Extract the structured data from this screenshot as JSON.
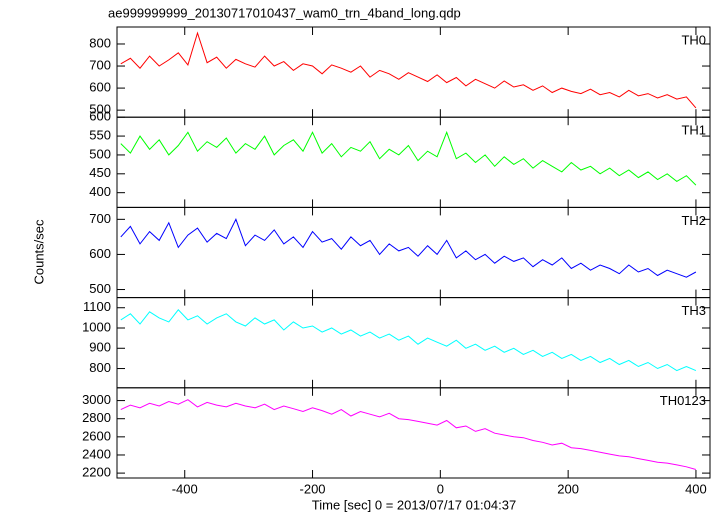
{
  "chart_data": {
    "type": "line",
    "title": "ae999999999_20130717010437_wam0_trn_4band_long.qdp",
    "xlabel": "Time [sec] 0 = 2013/07/17 01:04:37",
    "ylabel": "Counts/sec",
    "xlim": [
      -506,
      422
    ],
    "xticks": [
      -400,
      -200,
      0,
      200,
      400
    ],
    "x": [
      -500,
      -485,
      -470,
      -455,
      -440,
      -425,
      -410,
      -395,
      -380,
      -365,
      -350,
      -335,
      -320,
      -305,
      -290,
      -275,
      -260,
      -245,
      -230,
      -215,
      -200,
      -185,
      -170,
      -155,
      -140,
      -125,
      -110,
      -95,
      -80,
      -65,
      -50,
      -35,
      -20,
      -5,
      10,
      25,
      40,
      55,
      70,
      85,
      100,
      115,
      130,
      145,
      160,
      175,
      190,
      205,
      220,
      235,
      250,
      265,
      280,
      295,
      310,
      325,
      340,
      355,
      370,
      385,
      400
    ],
    "series": [
      {
        "name": "TH0",
        "color": "#ff0000",
        "ylim": [
          468,
          877
        ],
        "yticks": [
          500,
          600,
          700,
          800
        ],
        "values": [
          710,
          735,
          690,
          745,
          700,
          728,
          760,
          705,
          850,
          715,
          740,
          690,
          730,
          710,
          695,
          745,
          700,
          720,
          680,
          710,
          700,
          665,
          705,
          690,
          672,
          700,
          650,
          680,
          665,
          640,
          670,
          650,
          630,
          660,
          625,
          648,
          610,
          640,
          620,
          600,
          632,
          605,
          615,
          590,
          610,
          580,
          600,
          585,
          575,
          595,
          570,
          580,
          560,
          590,
          565,
          575,
          555,
          570,
          550,
          560,
          510
        ]
      },
      {
        "name": "TH1",
        "color": "#00ff00",
        "ylim": [
          361,
          600
        ],
        "yticks": [
          400,
          450,
          500,
          550,
          600
        ],
        "values": [
          530,
          505,
          550,
          515,
          540,
          500,
          525,
          560,
          510,
          535,
          520,
          545,
          505,
          530,
          515,
          550,
          500,
          525,
          540,
          510,
          560,
          505,
          530,
          495,
          520,
          510,
          535,
          490,
          515,
          500,
          525,
          485,
          510,
          495,
          560,
          490,
          505,
          480,
          500,
          470,
          495,
          475,
          490,
          465,
          485,
          470,
          455,
          480,
          460,
          470,
          450,
          465,
          445,
          460,
          440,
          455,
          435,
          450,
          430,
          445,
          420
        ]
      },
      {
        "name": "TH2",
        "color": "#0000ff",
        "ylim": [
          477,
          734
        ],
        "yticks": [
          500,
          600,
          700
        ],
        "values": [
          650,
          680,
          630,
          665,
          640,
          690,
          620,
          655,
          675,
          635,
          660,
          645,
          700,
          625,
          655,
          640,
          670,
          630,
          650,
          620,
          665,
          635,
          645,
          615,
          650,
          625,
          640,
          600,
          630,
          610,
          620,
          595,
          625,
          600,
          640,
          590,
          610,
          585,
          600,
          575,
          595,
          580,
          590,
          565,
          585,
          570,
          590,
          560,
          575,
          555,
          570,
          560,
          545,
          570,
          550,
          560,
          540,
          555,
          545,
          535,
          550
        ]
      },
      {
        "name": "TH3",
        "color": "#00ffff",
        "ylim": [
          705,
          1150
        ],
        "yticks": [
          800,
          900,
          1000,
          1100
        ],
        "values": [
          1040,
          1070,
          1020,
          1080,
          1050,
          1030,
          1090,
          1040,
          1060,
          1020,
          1050,
          1070,
          1030,
          1010,
          1050,
          1020,
          1040,
          990,
          1030,
          1000,
          1010,
          980,
          1000,
          970,
          990,
          960,
          980,
          950,
          970,
          940,
          960,
          920,
          950,
          930,
          910,
          940,
          900,
          920,
          890,
          910,
          880,
          900,
          870,
          890,
          860,
          880,
          850,
          870,
          840,
          860,
          830,
          850,
          820,
          840,
          810,
          830,
          800,
          820,
          790,
          810,
          790
        ]
      },
      {
        "name": "TH0123",
        "color": "#ff00ff",
        "ylim": [
          2146,
          3141
        ],
        "yticks": [
          2200,
          2400,
          2600,
          2800,
          3000
        ],
        "values": [
          2900,
          2950,
          2920,
          2970,
          2940,
          2990,
          2960,
          3010,
          2930,
          2980,
          2950,
          2930,
          2970,
          2940,
          2920,
          2960,
          2900,
          2940,
          2910,
          2880,
          2920,
          2890,
          2850,
          2900,
          2830,
          2880,
          2850,
          2820,
          2860,
          2800,
          2790,
          2770,
          2750,
          2730,
          2780,
          2700,
          2720,
          2660,
          2690,
          2640,
          2620,
          2600,
          2590,
          2560,
          2540,
          2510,
          2530,
          2480,
          2470,
          2450,
          2430,
          2410,
          2390,
          2380,
          2360,
          2340,
          2320,
          2310,
          2290,
          2270,
          2240
        ]
      }
    ]
  }
}
